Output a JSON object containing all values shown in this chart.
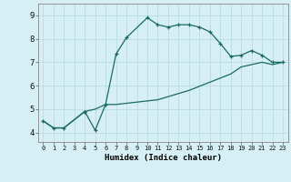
{
  "xlabel": "Humidex (Indice chaleur)",
  "bg_color": "#d6eff5",
  "grid_color": "#b8dce4",
  "line_color": "#1a6b5a",
  "xlim": [
    -0.5,
    23.5
  ],
  "ylim": [
    3.6,
    9.5
  ],
  "xticks": [
    0,
    1,
    2,
    3,
    4,
    5,
    6,
    7,
    8,
    9,
    10,
    11,
    12,
    13,
    14,
    15,
    16,
    17,
    18,
    19,
    20,
    21,
    22,
    23
  ],
  "yticks": [
    4,
    5,
    6,
    7,
    8,
    9
  ],
  "curve1_x": [
    0,
    1,
    2,
    4,
    4,
    5,
    6,
    7,
    8,
    10,
    11,
    12,
    13,
    14,
    15,
    16,
    17,
    18,
    19,
    20,
    21,
    22,
    23
  ],
  "curve1_y": [
    4.5,
    4.2,
    4.2,
    4.9,
    4.9,
    4.1,
    5.2,
    7.35,
    8.05,
    8.9,
    8.6,
    8.5,
    8.6,
    8.6,
    8.5,
    8.3,
    7.8,
    7.25,
    7.3,
    7.5,
    7.3,
    7.0,
    7.0
  ],
  "curve2_x": [
    0,
    1,
    2,
    4,
    5,
    6,
    7,
    10,
    11,
    14,
    18,
    19,
    21,
    22,
    23
  ],
  "curve2_y": [
    4.5,
    4.2,
    4.2,
    4.9,
    5.0,
    5.2,
    5.2,
    5.35,
    5.4,
    5.8,
    6.5,
    6.8,
    7.0,
    6.9,
    7.0
  ]
}
